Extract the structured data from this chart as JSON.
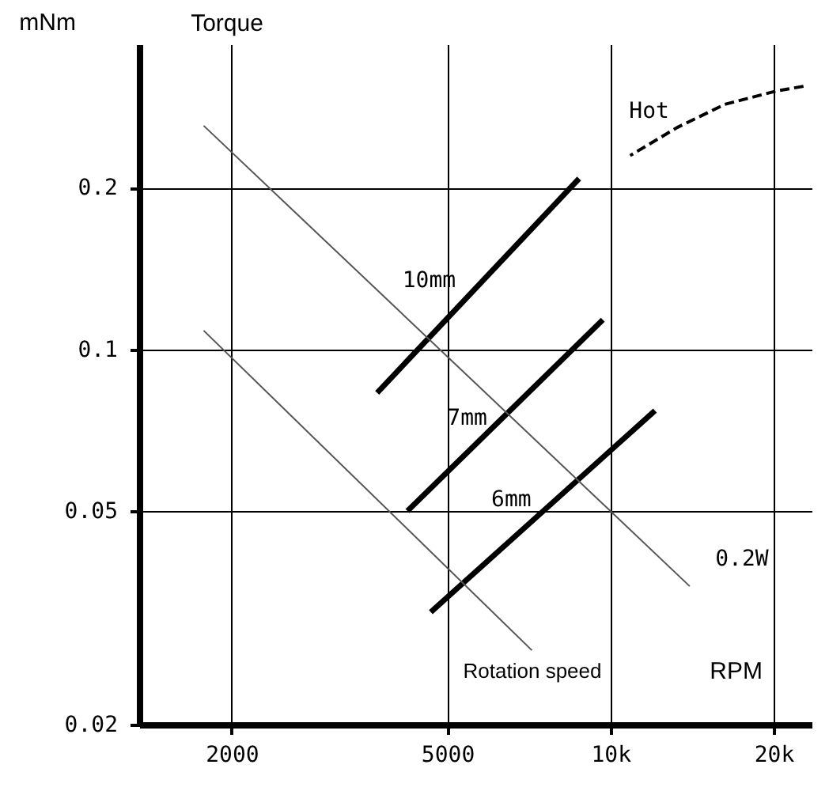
{
  "chart_data": {
    "type": "line",
    "xlabel": "Rotation speed",
    "ylabel": "Torque",
    "annotations": [
      "mNm",
      "RPM"
    ],
    "log": "xy",
    "grid": true,
    "marker": "none",
    "xlim": [
      1350,
      23500
    ],
    "ylim": [
      0.02,
      0.37
    ],
    "xticks": [
      2000,
      5000,
      {
        "value": 10000,
        "label": "10k"
      },
      {
        "value": 20000,
        "label": "20k"
      }
    ],
    "yticks": [
      0.02,
      0.05,
      0.1,
      0.2
    ],
    "series": [
      {
        "name": "10mm",
        "color": "#000000",
        "x": [
          3710,
          8750
        ],
        "values": [
          0.083,
          0.208
        ]
      },
      {
        "name": "7mm",
        "color": "#000000",
        "x": [
          4220,
          9680
        ],
        "values": [
          0.05,
          0.1135
        ]
      },
      {
        "name": "6mm",
        "color": "#000000",
        "x": [
          4660,
          12080
        ],
        "values": [
          0.0324,
          0.0769
        ]
      },
      {
        "name": "0.2W",
        "color": "#555555",
        "x": [
          1775,
          14000
        ],
        "values": [
          0.261,
          0.0362
        ]
      },
      {
        "color": "#555555",
        "x": [
          1775,
          7160
        ],
        "values": [
          0.1084,
          0.0275
        ]
      },
      {
        "name": "Hot",
        "color": "#000000",
        "line_style": "dashed",
        "x": [
          10870,
          13280,
          16250,
          20280,
          22700
        ],
        "values": [
          0.2296,
          0.259,
          0.286,
          0.303,
          0.309
        ]
      }
    ]
  }
}
